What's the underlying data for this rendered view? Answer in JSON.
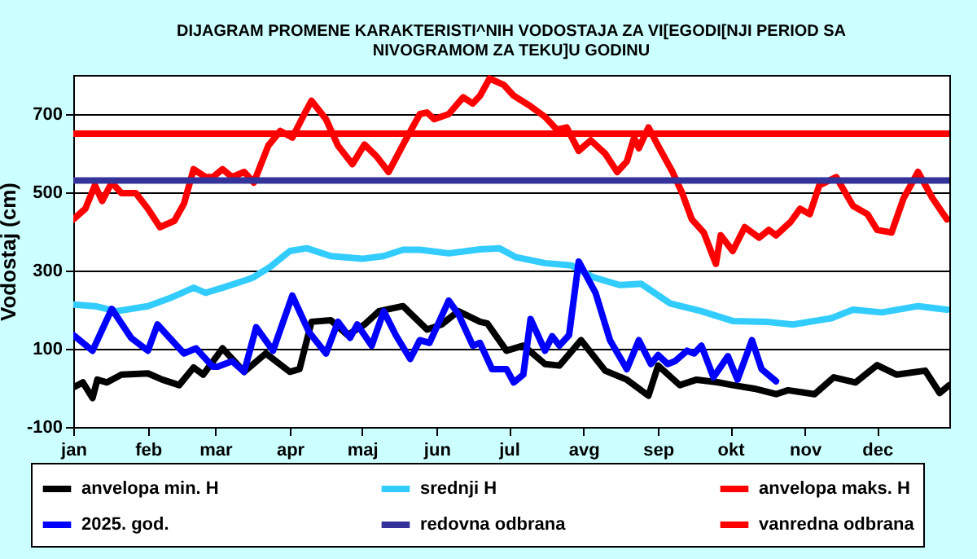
{
  "chart_data": {
    "type": "line",
    "title": "DIJAGRAM PROMENE  KARAKTERISTI^NIH  VODOSTAJA ZA VI[EGODI[NJI PERIOD  SA\nNIVOGRAMOM ZA TEKU]U  GODINU",
    "ylabel": "Vodostaj (cm)",
    "xlim": [
      "--01-01",
      "--12-31"
    ],
    "xticks": [
      {
        "value": "--01-01",
        "label": "jan"
      },
      {
        "value": "--02-01",
        "label": "feb"
      },
      {
        "value": "--03-01",
        "label": "mar"
      },
      {
        "value": "--04-01",
        "label": "apr"
      },
      {
        "value": "--05-01",
        "label": "maj"
      },
      {
        "value": "--06-01",
        "label": "jun"
      },
      {
        "value": "--07-01",
        "label": "jul"
      },
      {
        "value": "--08-01",
        "label": "avg"
      },
      {
        "value": "--09-01",
        "label": "sep"
      },
      {
        "value": "--10-01",
        "label": "okt"
      },
      {
        "value": "--11-01",
        "label": "nov"
      },
      {
        "value": "--12-01",
        "label": "dec"
      }
    ],
    "ylim": [
      -100,
      800
    ],
    "yticks": [
      -100,
      100,
      300,
      500,
      700
    ],
    "grid": "y",
    "legend": "bottom",
    "series": [
      {
        "name": "anvelopa min. H",
        "color": "#000000",
        "x": [
          "--01-01",
          "--01-05",
          "--01-09",
          "--01-11",
          "--01-15",
          "--01-21",
          "--02-01",
          "--02-07",
          "--02-14",
          "--02-20",
          "--02-24",
          "--03-04",
          "--03-09",
          "--03-13",
          "--03-22",
          "--04-01",
          "--04-05",
          "--04-10",
          "--04-18",
          "--04-25",
          "--05-02",
          "--05-08",
          "--05-18",
          "--05-28",
          "--06-03",
          "--06-10",
          "--06-19",
          "--06-22",
          "--06-30",
          "--07-07",
          "--07-16",
          "--07-22",
          "--07-31",
          "--08-10",
          "--08-19",
          "--08-28",
          "--09-01",
          "--09-10",
          "--09-17",
          "--09-26",
          "--10-02",
          "--10-11",
          "--10-20",
          "--10-25",
          "--11-05",
          "--11-13",
          "--11-22",
          "--12-01",
          "--12-09",
          "--12-21",
          "--12-27",
          "--12-31"
        ],
        "values": [
          1,
          14,
          -26,
          21,
          14,
          34,
          37,
          21,
          7,
          52,
          34,
          101,
          68,
          41,
          88,
          41,
          48,
          169,
          173,
          135,
          162,
          196,
          209,
          149,
          162,
          196,
          169,
          165,
          95,
          108,
          61,
          57,
          122,
          44,
          21,
          -20,
          57,
          7,
          21,
          14,
          7,
          -2,
          -16,
          -6,
          -16,
          27,
          14,
          58,
          34,
          44,
          -13,
          7
        ]
      },
      {
        "name": "srednji H",
        "color": "#33ccff",
        "x": [
          "--01-01",
          "--01-10",
          "--01-19",
          "--02-01",
          "--02-10",
          "--02-20",
          "--02-25",
          "--03-04",
          "--03-14",
          "--03-17",
          "--03-24",
          "--04-01",
          "--04-08",
          "--04-18",
          "--05-01",
          "--05-10",
          "--05-18",
          "--05-25",
          "--06-06",
          "--06-19",
          "--06-27",
          "--07-04",
          "--07-16",
          "--07-27",
          "--08-05",
          "--08-16",
          "--08-25",
          "--09-06",
          "--09-19",
          "--10-02",
          "--10-16",
          "--10-27",
          "--11-12",
          "--11-21",
          "--12-03",
          "--12-18",
          "--12-30"
        ],
        "values": [
          213,
          209,
          196,
          209,
          229,
          256,
          243,
          256,
          276,
          283,
          310,
          350,
          357,
          337,
          330,
          337,
          353,
          353,
          344,
          354,
          357,
          334,
          319,
          313,
          283,
          263,
          266,
          216,
          196,
          171,
          169,
          162,
          178,
          200,
          193,
          209,
          200
        ]
      },
      {
        "name": "anvelopa maks. H",
        "color": "#ff0000",
        "x": [
          "--01-01",
          "--01-06",
          "--01-10",
          "--01-13",
          "--01-17",
          "--01-21",
          "--01-27",
          "--02-01",
          "--02-06",
          "--02-12",
          "--02-16",
          "--02-20",
          "--02-25",
          "--02-28",
          "--03-04",
          "--03-08",
          "--03-13",
          "--03-17",
          "--03-23",
          "--03-28",
          "--04-02",
          "--04-07",
          "--04-10",
          "--04-16",
          "--04-21",
          "--04-27",
          "--05-02",
          "--05-07",
          "--05-12",
          "--05-19",
          "--05-25",
          "--05-28",
          "--05-31",
          "--06-06",
          "--06-12",
          "--06-16",
          "--06-19",
          "--06-23",
          "--06-29",
          "--07-03",
          "--07-10",
          "--07-16",
          "--07-21",
          "--07-25",
          "--07-30",
          "--08-04",
          "--08-10",
          "--08-15",
          "--08-19",
          "--08-22",
          "--08-24",
          "--08-28",
          "--09-01",
          "--09-07",
          "--09-11",
          "--09-15",
          "--09-20",
          "--09-25",
          "--09-27",
          "--10-02",
          "--10-07",
          "--10-13",
          "--10-17",
          "--10-20",
          "--10-26",
          "--10-30",
          "--11-03",
          "--11-07",
          "--11-14",
          "--11-21",
          "--11-27",
          "--12-01",
          "--12-07",
          "--12-12",
          "--12-18",
          "--12-24",
          "--12-30"
        ],
        "values": [
          431,
          458,
          518,
          478,
          525,
          498,
          498,
          458,
          411,
          427,
          471,
          559,
          539,
          539,
          559,
          539,
          552,
          525,
          619,
          657,
          640,
          700,
          734,
          687,
          619,
          572,
          622,
          592,
          552,
          633,
          700,
          704,
          687,
          700,
          743,
          727,
          747,
          791,
          774,
          747,
          720,
          693,
          660,
          666,
          606,
          633,
          599,
          552,
          579,
          640,
          613,
          666,
          619,
          552,
          498,
          431,
          397,
          317,
          390,
          350,
          411,
          384,
          404,
          390,
          424,
          458,
          444,
          518,
          539,
          465,
          444,
          404,
          397,
          485,
          552,
          485,
          431
        ]
      },
      {
        "name": "2025. god.",
        "color": "#0000ff",
        "x": [
          "--01-01",
          "--01-09",
          "--01-17",
          "--01-25",
          "--02-01",
          "--02-05",
          "--02-10",
          "--02-16",
          "--02-21",
          "--02-28",
          "--03-02",
          "--03-08",
          "--03-13",
          "--03-18",
          "--03-25",
          "--04-02",
          "--04-09",
          "--04-16",
          "--04-21",
          "--04-26",
          "--04-29",
          "--05-05",
          "--05-10",
          "--05-15",
          "--05-21",
          "--05-25",
          "--05-29",
          "--06-06",
          "--06-10",
          "--06-16",
          "--06-19",
          "--06-24",
          "--06-30",
          "--07-03",
          "--07-07",
          "--07-10",
          "--07-16",
          "--07-19",
          "--07-22",
          "--07-26",
          "--07-30",
          "--08-06",
          "--08-12",
          "--08-19",
          "--08-24",
          "--08-29",
          "--09-01",
          "--09-05",
          "--09-08",
          "--09-13",
          "--09-16",
          "--09-19",
          "--09-24",
          "--09-30",
          "--10-04",
          "--10-10",
          "--10-14",
          "--10-20"
        ],
        "values": [
          135,
          95,
          202,
          128,
          95,
          162,
          128,
          88,
          101,
          54,
          54,
          68,
          41,
          155,
          95,
          236,
          142,
          88,
          169,
          128,
          162,
          108,
          196,
          135,
          74,
          122,
          115,
          223,
          189,
          108,
          115,
          48,
          48,
          14,
          34,
          176,
          95,
          132,
          108,
          135,
          323,
          243,
          122,
          48,
          122,
          61,
          84,
          61,
          68,
          95,
          88,
          108,
          27,
          81,
          21,
          122,
          48,
          17
        ]
      }
    ],
    "ref_lines": [
      {
        "axis": "y",
        "value": 530,
        "label": "redovna odbrana",
        "color": "#333399"
      },
      {
        "axis": "y",
        "value": 650,
        "label": "vanredna odbrana",
        "color": "#ff0000"
      }
    ]
  }
}
